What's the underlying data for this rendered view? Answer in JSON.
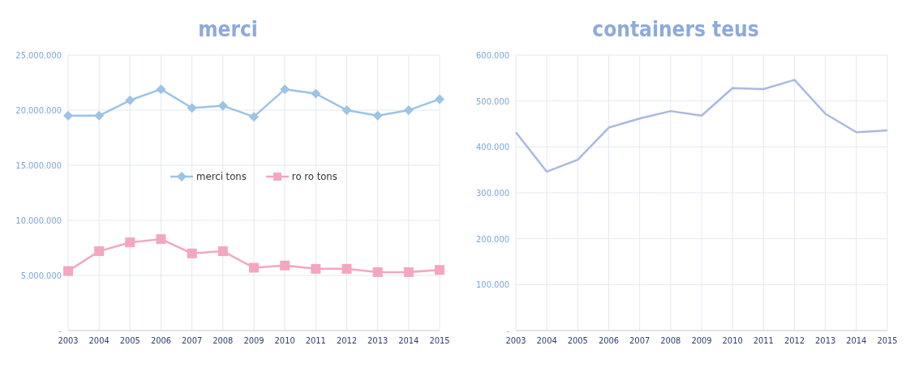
{
  "chart_data": [
    {
      "type": "line",
      "title": "merci",
      "categories": [
        "2003",
        "2004",
        "2005",
        "2006",
        "2007",
        "2008",
        "2009",
        "2010",
        "2011",
        "2012",
        "2013",
        "2014",
        "2015"
      ],
      "series": [
        {
          "name": "merci tons",
          "color": "#9dc3e6",
          "marker": "diamond",
          "values": [
            19500000,
            19500000,
            20900000,
            21900000,
            20200000,
            20400000,
            19400000,
            21900000,
            21500000,
            20000000,
            19500000,
            20000000,
            21000000
          ]
        },
        {
          "name": "ro ro tons",
          "color": "#f4a6c0",
          "marker": "square",
          "values": [
            5400000,
            7200000,
            8000000,
            8300000,
            7000000,
            7200000,
            5700000,
            5900000,
            5600000,
            5600000,
            5300000,
            5300000,
            5500000
          ]
        }
      ],
      "ylim": [
        0,
        25000000
      ],
      "yticks": [
        {
          "value": 0,
          "label": "-"
        },
        {
          "value": 5000000,
          "label": "5.000.000"
        },
        {
          "value": 10000000,
          "label": "10.000.000"
        },
        {
          "value": 15000000,
          "label": "15.000.000"
        },
        {
          "value": 20000000,
          "label": "20.000.000"
        },
        {
          "value": 25000000,
          "label": "25.000.000"
        }
      ],
      "grid": true,
      "legend": "center"
    },
    {
      "type": "line",
      "title": "containers teus",
      "categories": [
        "2003",
        "2004",
        "2005",
        "2006",
        "2007",
        "2008",
        "2009",
        "2010",
        "2011",
        "2012",
        "2013",
        "2014",
        "2015"
      ],
      "series": [
        {
          "color": "#a9b9e0",
          "marker": "none",
          "values": [
            432000,
            346000,
            372000,
            442000,
            462000,
            478000,
            468000,
            528000,
            526000,
            546000,
            472000,
            432000,
            436000
          ]
        }
      ],
      "ylim": [
        0,
        600000
      ],
      "yticks": [
        {
          "value": 0,
          "label": "-"
        },
        {
          "value": 100000,
          "label": "100.000"
        },
        {
          "value": 200000,
          "label": "200.000"
        },
        {
          "value": 300000,
          "label": "300.000"
        },
        {
          "value": 400000,
          "label": "400.000"
        },
        {
          "value": 500000,
          "label": "500.000"
        },
        {
          "value": 600000,
          "label": "600.000"
        }
      ],
      "grid": true
    }
  ]
}
